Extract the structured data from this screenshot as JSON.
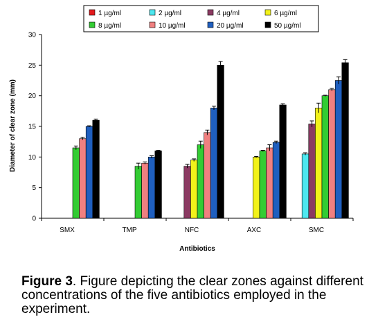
{
  "chart_data": {
    "type": "bar",
    "categories": [
      "SMX",
      "TMP",
      "NFC",
      "AXC",
      "SMC"
    ],
    "xlabel": "Antibiotics",
    "ylabel": "Diameter of clear zone (mm)",
    "ylim": [
      0,
      30
    ],
    "yticks": [
      0,
      5,
      10,
      15,
      20,
      25,
      30
    ],
    "grid": false,
    "legend_position": "top",
    "error_bars": true,
    "series": [
      {
        "name": "1 µg/ml",
        "color": "#e31a1c",
        "values": [
          null,
          null,
          null,
          null,
          null
        ],
        "errors": [
          0,
          0,
          0,
          0,
          0
        ]
      },
      {
        "name": "2 µg/ml",
        "color": "#4ee8f0",
        "values": [
          null,
          null,
          null,
          null,
          10.5
        ],
        "errors": [
          0,
          0,
          0,
          0,
          0.2
        ]
      },
      {
        "name": "4 µg/ml",
        "color": "#8b3a62",
        "values": [
          null,
          null,
          8.5,
          null,
          15.4
        ],
        "errors": [
          0,
          0,
          0.3,
          0,
          0.5
        ]
      },
      {
        "name": "6 µg/ml",
        "color": "#f2f21a",
        "values": [
          null,
          null,
          9.5,
          10.0,
          18.0
        ],
        "errors": [
          0,
          0,
          0.2,
          0.1,
          0.8
        ]
      },
      {
        "name": "8 µg/ml",
        "color": "#33cc33",
        "values": [
          11.5,
          8.5,
          12.0,
          11.0,
          20.0
        ],
        "errors": [
          0.3,
          0.5,
          0.6,
          0.1,
          0.1
        ]
      },
      {
        "name": "10 µg/ml",
        "color": "#f08080",
        "values": [
          13.0,
          9.0,
          14.0,
          11.5,
          21.0
        ],
        "errors": [
          0.2,
          0.2,
          0.4,
          0.5,
          0.2
        ]
      },
      {
        "name": "20 µg/ml",
        "color": "#1f5fbf",
        "values": [
          15.0,
          10.0,
          18.0,
          12.4,
          22.5
        ],
        "errors": [
          0.1,
          0.2,
          0.3,
          0.2,
          0.6
        ]
      },
      {
        "name": "50 µg/ml",
        "color": "#000000",
        "values": [
          16.0,
          11.0,
          25.0,
          18.5,
          25.4
        ],
        "errors": [
          0.2,
          0.1,
          0.6,
          0.2,
          0.5
        ]
      }
    ]
  },
  "caption": {
    "label": "Figure 3",
    "text": ". Figure depicting the clear zones against different concentrations of the five antibiotics employed in the experiment."
  }
}
